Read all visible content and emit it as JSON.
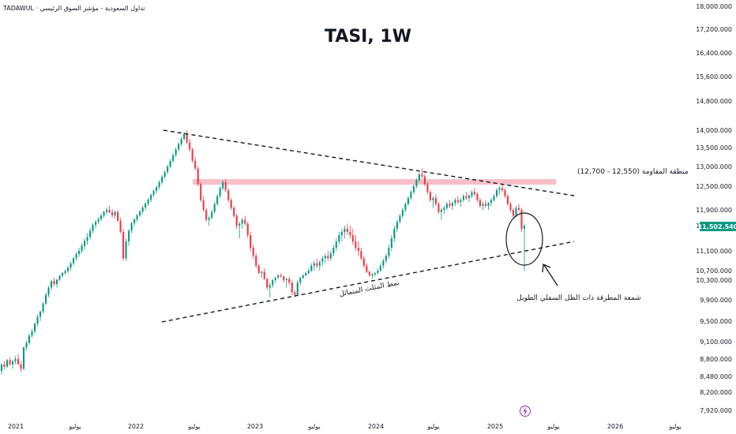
{
  "header": {
    "source": "TADAWUL · تداول السعودية - مؤشر السوق الرئيسي"
  },
  "chart_data": {
    "type": "candlestick",
    "title": "TASI, 1W",
    "y_axis": {
      "ticks": [
        "18,000.000",
        "17,200.000",
        "16,400.000",
        "15,600.000",
        "14,800.000",
        "14,000.000",
        "13,500.000",
        "13,000.000",
        "12,500.000",
        "11,900.000",
        "11,500.000",
        "11,100.000",
        "10,700.000",
        "10,300.000",
        "9,900.000",
        "9,500.000",
        "9,100.000",
        "8,800.000",
        "8,480.000",
        "8,200.000",
        "7,920.000"
      ],
      "current_price": "11,502.540",
      "current_color": "#089981"
    },
    "x_axis": {
      "ticks": [
        "2021",
        "يوليو",
        "2022",
        "يوليو",
        "2023",
        "يوليو",
        "2024",
        "يوليو",
        "2025",
        "يوليو",
        "2026",
        "يوليو"
      ]
    },
    "annotations": {
      "resistance_label": "منطقة المقاومة (12,550 - 12,700)",
      "triangle_label": "نمط المثلث المتماثل",
      "hammer_label": "شمعة المطرقة ذات الظل السفلي الطويل"
    },
    "colors": {
      "up": "#089981",
      "down": "#f23645",
      "resistance_zone": "#f8bfc8"
    },
    "candles": [
      [
        8580,
        8720,
        8520,
        8700
      ],
      [
        8700,
        8760,
        8610,
        8660
      ],
      [
        8660,
        8800,
        8640,
        8780
      ],
      [
        8780,
        8830,
        8680,
        8700
      ],
      [
        8700,
        8790,
        8620,
        8760
      ],
      [
        8760,
        8850,
        8710,
        8800
      ],
      [
        8800,
        8880,
        8740,
        8700
      ],
      [
        8700,
        8760,
        8560,
        8620
      ],
      [
        8620,
        9020,
        8600,
        9000
      ],
      [
        9000,
        9120,
        8950,
        9080
      ],
      [
        9080,
        9250,
        9040,
        9220
      ],
      [
        9220,
        9350,
        9180,
        9300
      ],
      [
        9300,
        9480,
        9250,
        9450
      ],
      [
        9450,
        9620,
        9400,
        9580
      ],
      [
        9580,
        9700,
        9500,
        9680
      ],
      [
        9680,
        9860,
        9640,
        9830
      ],
      [
        9830,
        10050,
        9800,
        10000
      ],
      [
        10000,
        10180,
        9950,
        10150
      ],
      [
        10150,
        10320,
        10100,
        10280
      ],
      [
        10280,
        10400,
        10180,
        10220
      ],
      [
        10220,
        10350,
        10150,
        10320
      ],
      [
        10320,
        10520,
        10280,
        10480
      ],
      [
        10480,
        10640,
        10420,
        10600
      ],
      [
        10600,
        10720,
        10520,
        10680
      ],
      [
        10680,
        10800,
        10600,
        10760
      ],
      [
        10760,
        10880,
        10700,
        10850
      ],
      [
        10850,
        10980,
        10800,
        10950
      ],
      [
        10950,
        11080,
        10900,
        11040
      ],
      [
        11040,
        11150,
        10980,
        11100
      ],
      [
        11100,
        11220,
        11050,
        11180
      ],
      [
        11180,
        11300,
        11120,
        11260
      ],
      [
        11260,
        11380,
        11200,
        11320
      ],
      [
        11320,
        11460,
        11280,
        11420
      ],
      [
        11420,
        11560,
        11380,
        11520
      ],
      [
        11520,
        11640,
        11460,
        11600
      ],
      [
        11600,
        11720,
        11540,
        11660
      ],
      [
        11660,
        11800,
        11620,
        11760
      ],
      [
        11760,
        11880,
        11700,
        11850
      ],
      [
        11850,
        11960,
        11780,
        11900
      ],
      [
        11900,
        12000,
        11820,
        11840
      ],
      [
        11840,
        11920,
        11700,
        11760
      ],
      [
        11760,
        11880,
        11680,
        11850
      ],
      [
        11850,
        11900,
        11600,
        11620
      ],
      [
        11620,
        11700,
        11380,
        11400
      ],
      [
        11400,
        11450,
        10900,
        10950
      ],
      [
        10950,
        11300,
        10900,
        11250
      ],
      [
        11250,
        11450,
        11180,
        11420
      ],
      [
        11420,
        11600,
        11380,
        11560
      ],
      [
        11560,
        11700,
        11500,
        11660
      ],
      [
        11660,
        11800,
        11600,
        11760
      ],
      [
        11760,
        11900,
        11720,
        11860
      ],
      [
        11860,
        12000,
        11800,
        11960
      ],
      [
        11960,
        12100,
        11900,
        12060
      ],
      [
        12060,
        12200,
        12000,
        12160
      ],
      [
        12160,
        12320,
        12100,
        12280
      ],
      [
        12280,
        12420,
        12220,
        12380
      ],
      [
        12380,
        12520,
        12320,
        12480
      ],
      [
        12480,
        12650,
        12420,
        12600
      ],
      [
        12600,
        12780,
        12550,
        12740
      ],
      [
        12740,
        12900,
        12680,
        12860
      ],
      [
        12860,
        13050,
        12800,
        13000
      ],
      [
        13000,
        13200,
        12950,
        13150
      ],
      [
        13150,
        13350,
        13100,
        13300
      ],
      [
        13300,
        13500,
        13250,
        13450
      ],
      [
        13450,
        13650,
        13400,
        13600
      ],
      [
        13600,
        13800,
        13550,
        13750
      ],
      [
        13750,
        13950,
        13700,
        13900
      ],
      [
        13900,
        14000,
        13600,
        13650
      ],
      [
        13650,
        13750,
        13400,
        13450
      ],
      [
        13450,
        13500,
        13100,
        13150
      ],
      [
        13150,
        13250,
        12900,
        12950
      ],
      [
        12950,
        13000,
        12500,
        12550
      ],
      [
        12550,
        12600,
        12100,
        12150
      ],
      [
        12150,
        12250,
        11850,
        11900
      ],
      [
        11900,
        11950,
        11600,
        11650
      ],
      [
        11650,
        11750,
        11500,
        11700
      ],
      [
        11700,
        11900,
        11650,
        11850
      ],
      [
        11850,
        12100,
        11800,
        12050
      ],
      [
        12050,
        12300,
        12000,
        12250
      ],
      [
        12250,
        12500,
        12200,
        12450
      ],
      [
        12450,
        12650,
        12400,
        12600
      ],
      [
        12600,
        12680,
        12350,
        12400
      ],
      [
        12400,
        12450,
        12100,
        12150
      ],
      [
        12150,
        12200,
        11900,
        11950
      ],
      [
        11950,
        12000,
        11700,
        11750
      ],
      [
        11750,
        11800,
        11450,
        11500
      ],
      [
        11500,
        11600,
        11300,
        11550
      ],
      [
        11550,
        11700,
        11450,
        11650
      ],
      [
        11650,
        11750,
        11500,
        11550
      ],
      [
        11550,
        11600,
        11300,
        11350
      ],
      [
        11350,
        11400,
        11100,
        11150
      ],
      [
        11150,
        11200,
        10950,
        11000
      ],
      [
        11000,
        11050,
        10750,
        10800
      ],
      [
        10800,
        10850,
        10550,
        10600
      ],
      [
        10600,
        10700,
        10400,
        10650
      ],
      [
        10650,
        10750,
        10300,
        10350
      ],
      [
        10350,
        10400,
        10100,
        10150
      ],
      [
        10150,
        10250,
        9950,
        10200
      ],
      [
        10200,
        10350,
        10150,
        10300
      ],
      [
        10300,
        10450,
        10250,
        10400
      ],
      [
        10400,
        10550,
        10350,
        10500
      ],
      [
        10500,
        10600,
        10400,
        10450
      ],
      [
        10450,
        10500,
        10250,
        10300
      ],
      [
        10300,
        10400,
        10150,
        10350
      ],
      [
        10350,
        10450,
        10200,
        10250
      ],
      [
        10250,
        10300,
        10000,
        10050
      ],
      [
        10050,
        10100,
        9950,
        10000
      ],
      [
        10000,
        10300,
        9980,
        10250
      ],
      [
        10250,
        10450,
        10200,
        10400
      ],
      [
        10400,
        10550,
        10350,
        10500
      ],
      [
        10500,
        10650,
        10450,
        10600
      ],
      [
        10600,
        10750,
        10550,
        10700
      ],
      [
        10700,
        10850,
        10650,
        10800
      ],
      [
        10800,
        10900,
        10700,
        10850
      ],
      [
        10850,
        10950,
        10750,
        10800
      ],
      [
        10800,
        10900,
        10700,
        10880
      ],
      [
        10880,
        11000,
        10800,
        10950
      ],
      [
        10950,
        11050,
        10850,
        11000
      ],
      [
        11000,
        11100,
        10900,
        10950
      ],
      [
        10950,
        11100,
        10900,
        11050
      ],
      [
        11050,
        11200,
        11000,
        11150
      ],
      [
        11150,
        11300,
        11100,
        11250
      ],
      [
        11250,
        11400,
        11200,
        11350
      ],
      [
        11350,
        11450,
        11250,
        11400
      ],
      [
        11400,
        11500,
        11300,
        11450
      ],
      [
        11450,
        11550,
        11350,
        11400
      ],
      [
        11400,
        11500,
        11300,
        11350
      ],
      [
        11350,
        11450,
        11200,
        11250
      ],
      [
        11250,
        11350,
        11100,
        11150
      ],
      [
        11150,
        11250,
        11000,
        11100
      ],
      [
        11100,
        11150,
        10900,
        10950
      ],
      [
        10950,
        11000,
        10750,
        10800
      ],
      [
        10800,
        10850,
        10600,
        10650
      ],
      [
        10650,
        10700,
        10450,
        10500
      ],
      [
        10500,
        10600,
        10350,
        10550
      ],
      [
        10550,
        10650,
        10450,
        10600
      ],
      [
        10600,
        10750,
        10550,
        10700
      ],
      [
        10700,
        10850,
        10650,
        10800
      ],
      [
        10800,
        10950,
        10750,
        10900
      ],
      [
        10900,
        11050,
        10850,
        11000
      ],
      [
        11000,
        11200,
        10950,
        11150
      ],
      [
        11150,
        11350,
        11100,
        11300
      ],
      [
        11300,
        11500,
        11250,
        11450
      ],
      [
        11450,
        11650,
        11400,
        11600
      ],
      [
        11600,
        11800,
        11550,
        11750
      ],
      [
        11750,
        11950,
        11700,
        11900
      ],
      [
        11900,
        12100,
        11850,
        12050
      ],
      [
        12050,
        12250,
        12000,
        12200
      ],
      [
        12200,
        12400,
        12150,
        12350
      ],
      [
        12350,
        12550,
        12300,
        12500
      ],
      [
        12500,
        12700,
        12450,
        12650
      ],
      [
        12650,
        12850,
        12600,
        12800
      ],
      [
        12800,
        12950,
        12700,
        12750
      ],
      [
        12750,
        12800,
        12500,
        12550
      ],
      [
        12550,
        12600,
        12300,
        12350
      ],
      [
        12350,
        12400,
        12100,
        12150
      ],
      [
        12150,
        12250,
        11950,
        12200
      ],
      [
        12200,
        12300,
        12000,
        12050
      ],
      [
        12050,
        12100,
        11800,
        11850
      ],
      [
        11850,
        11950,
        11650,
        11900
      ],
      [
        11900,
        12000,
        11800,
        11950
      ],
      [
        11950,
        12100,
        11900,
        12050
      ],
      [
        12050,
        12150,
        11950,
        12000
      ],
      [
        12000,
        12100,
        11900,
        12080
      ],
      [
        12080,
        12200,
        12000,
        12150
      ],
      [
        12150,
        12250,
        12050,
        12100
      ],
      [
        12100,
        12200,
        11980,
        12150
      ],
      [
        12150,
        12300,
        12100,
        12250
      ],
      [
        12250,
        12350,
        12150,
        12200
      ],
      [
        12200,
        12300,
        12100,
        12260
      ],
      [
        12260,
        12400,
        12200,
        12350
      ],
      [
        12350,
        12450,
        12250,
        12300
      ],
      [
        12300,
        12350,
        12100,
        12150
      ],
      [
        12150,
        12200,
        11950,
        12000
      ],
      [
        12000,
        12100,
        11900,
        12050
      ],
      [
        12050,
        12150,
        11950,
        12000
      ],
      [
        12000,
        12100,
        11900,
        12080
      ],
      [
        12080,
        12200,
        12000,
        12150
      ],
      [
        12150,
        12300,
        12100,
        12250
      ],
      [
        12250,
        12450,
        12200,
        12400
      ],
      [
        12400,
        12500,
        12300,
        12450
      ],
      [
        12450,
        12550,
        12350,
        12400
      ],
      [
        12400,
        12450,
        12200,
        12250
      ],
      [
        12250,
        12300,
        12000,
        12050
      ],
      [
        12050,
        12100,
        11850,
        11900
      ],
      [
        11900,
        11950,
        11700,
        11750
      ],
      [
        11750,
        12000,
        11700,
        11950
      ],
      [
        11950,
        12050,
        11880,
        11900
      ],
      [
        11900,
        11950,
        11400,
        11450
      ],
      [
        11450,
        11550,
        10700,
        11500
      ]
    ]
  }
}
